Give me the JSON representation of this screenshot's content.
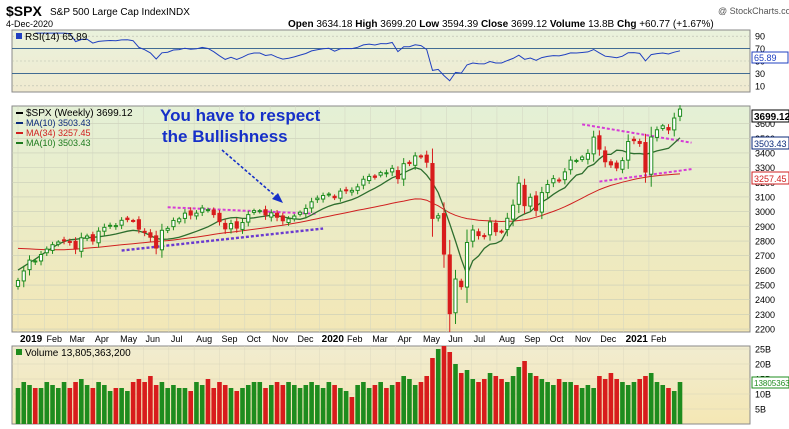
{
  "header": {
    "symbol": "$SPX",
    "name": "S&P 500 Large Cap Index",
    "exchange": "INDX",
    "date": "4-Dec-2020",
    "watermark": "@ StockCharts.com",
    "open_label": "Open",
    "open": "3634.18",
    "high_label": "High",
    "high": "3699.20",
    "low_label": "Low",
    "low": "3594.39",
    "close_label": "Close",
    "close": "3699.12",
    "volume_label": "Volume",
    "volume": "13.8B",
    "chg_label": "Chg",
    "chg": "+60.77 (+1.67%)"
  },
  "rsi": {
    "label": "RSI(14) 65.89",
    "value_badge": "65.89",
    "levels": [
      90,
      70,
      50,
      30,
      10
    ],
    "line_color": "#2040c0"
  },
  "price_legend": [
    {
      "text": "$SPX (Weekly) 3699.12",
      "color": "#000000"
    },
    {
      "text": "MA(10) 3503.43",
      "color": "#0b2a7a"
    },
    {
      "text": "MA(34) 3257.45",
      "color": "#d02020"
    },
    {
      "text": "MA(10) 3503.43",
      "color": "#1d7a1d"
    }
  ],
  "annotation": {
    "line1": "You have to respect",
    "line2": "the Bullishness",
    "color": "#1630c8"
  },
  "badges": {
    "last": "3699.12",
    "ma10": "3503.43",
    "ma34": "3257.45",
    "volume": "13805363200"
  },
  "volume_legend": "Volume 13,805,363,200",
  "colors": {
    "up": "#1e8c1e",
    "down": "#d81c1c",
    "ma10": "#2e6e2e",
    "ma34": "#d02020",
    "trend_magenta": "#d63cd6",
    "trend_purple": "#6a3ad0",
    "panel_bg_top": "#e6f1d6",
    "panel_bg_bottom": "#f2e6b8"
  },
  "chart_data": {
    "type": "candlestick",
    "title": "$SPX S&P 500 Large Cap Index INDX",
    "interval": "Weekly",
    "x_labels": [
      "2019",
      "Feb",
      "Mar",
      "Apr",
      "May",
      "Jun",
      "Jul",
      "Aug",
      "Sep",
      "Oct",
      "Nov",
      "Dec",
      "2020",
      "Feb",
      "Mar",
      "Apr",
      "May",
      "Jun",
      "Jul",
      "Aug",
      "Sep",
      "Oct",
      "Nov",
      "Dec",
      "2021",
      "Feb"
    ],
    "price_ticks": [
      2200,
      2300,
      2400,
      2500,
      2600,
      2700,
      2800,
      2900,
      3000,
      3100,
      3200,
      3300,
      3400,
      3500,
      3600
    ],
    "price_ylim": [
      2180,
      3720
    ],
    "volume_ticks": [
      "25B",
      "20B",
      "15B",
      "10B",
      "5B"
    ],
    "volume_ylim": [
      0,
      26
    ],
    "close": [
      2531,
      2596,
      2670,
      2664,
      2708,
      2745,
      2775,
      2793,
      2803,
      2792,
      2745,
      2822,
      2834,
      2800,
      2867,
      2893,
      2907,
      2905,
      2941,
      2946,
      2939,
      2881,
      2859,
      2826,
      2752,
      2873,
      2886,
      2940,
      2951,
      2990,
      2977,
      2990,
      3025,
      3014,
      2980,
      2932,
      2883,
      2919,
      2888,
      2926,
      2980,
      3007,
      3007,
      2978,
      2992,
      2962,
      2938,
      2951,
      2970,
      2996,
      3022,
      3067,
      3092,
      3110,
      3120,
      3095,
      3140,
      3146,
      3145,
      3169,
      3221,
      3240,
      3234,
      3266,
      3265,
      3295,
      3225,
      3327,
      3328,
      3380,
      3373,
      3337,
      2954,
      2972,
      2711,
      2305,
      2541,
      2489,
      2790,
      2875,
      2837,
      2830,
      2930,
      2864,
      2863,
      2955,
      3044,
      3194,
      3041,
      3098,
      3009,
      3130,
      3185,
      3225,
      3215,
      3271,
      3351,
      3349,
      3372,
      3397,
      3508,
      3426,
      3340,
      3319,
      3298,
      3348,
      3478,
      3484,
      3465,
      3270,
      3509,
      3558,
      3585,
      3557,
      3638,
      3699
    ],
    "volume_b": [
      12,
      14,
      13,
      12,
      12,
      14,
      13,
      12,
      14,
      12,
      14,
      15,
      13,
      12,
      14,
      13,
      11,
      12,
      12,
      11,
      14,
      15,
      14,
      16,
      13,
      14,
      12,
      13,
      12,
      12,
      11,
      14,
      13,
      15,
      12,
      14,
      13,
      12,
      11,
      12,
      13,
      14,
      14,
      12,
      13,
      14,
      13,
      14,
      13,
      12,
      13,
      14,
      13,
      12,
      14,
      13,
      12,
      11,
      9,
      13,
      14,
      12,
      13,
      14,
      12,
      13,
      14,
      16,
      15,
      13,
      14,
      16,
      22,
      25,
      26,
      24,
      20,
      17,
      18,
      15,
      14,
      15,
      17,
      16,
      15,
      14,
      16,
      19,
      21,
      17,
      16,
      15,
      14,
      13,
      15,
      14,
      14,
      13,
      12,
      13,
      12,
      16,
      15,
      17,
      15,
      14,
      13,
      14,
      15,
      16,
      17,
      14,
      13,
      12,
      11,
      14
    ],
    "ma10": [
      2602,
      2627,
      2652,
      2676,
      2703,
      2730,
      2755,
      2778,
      2796,
      2808,
      2812,
      2817,
      2822,
      2825,
      2829,
      2834,
      2840,
      2848,
      2857,
      2867,
      2873,
      2868,
      2855,
      2838,
      2817,
      2812,
      2813,
      2818,
      2826,
      2838,
      2852,
      2866,
      2881,
      2897,
      2917,
      2939,
      2950,
      2958,
      2960,
      2954,
      2954,
      2958,
      2964,
      2970,
      2976,
      2972,
      2965,
      2957,
      2951,
      2948,
      2958,
      2978,
      3000,
      3020,
      3037,
      3050,
      3058,
      3070,
      3082,
      3098,
      3119,
      3140,
      3160,
      3182,
      3207,
      3231,
      3245,
      3264,
      3283,
      3300,
      3288,
      3249,
      3197,
      3130,
      3027,
      2918,
      2800,
      2676,
      2570,
      2665,
      2698,
      2750,
      2778,
      2784,
      2803,
      2875,
      2932,
      2964,
      2985,
      3000,
      3037,
      3065,
      3088,
      3118,
      3143,
      3163,
      3209,
      3249,
      3260,
      3306,
      3322,
      3360,
      3390,
      3390,
      3419,
      3416,
      3401,
      3395,
      3396,
      3390,
      3402,
      3414,
      3423,
      3432,
      3467,
      3503
    ],
    "ma34": [
      2750,
      2748,
      2746,
      2744,
      2742,
      2741,
      2740,
      2740,
      2741,
      2743,
      2745,
      2748,
      2752,
      2755,
      2758,
      2762,
      2766,
      2770,
      2774,
      2778,
      2782,
      2786,
      2789,
      2793,
      2796,
      2800,
      2803,
      2807,
      2812,
      2817,
      2822,
      2827,
      2832,
      2838,
      2845,
      2851,
      2856,
      2860,
      2865,
      2870,
      2875,
      2880,
      2885,
      2890,
      2896,
      2902,
      2908,
      2914,
      2921,
      2928,
      2936,
      2944,
      2952,
      2961,
      2969,
      2977,
      2985,
      2993,
      3001,
      3009,
      3016,
      3024,
      3032,
      3040,
      3048,
      3057,
      3065,
      3072,
      3080,
      3087,
      3086,
      3078,
      3058,
      3040,
      3015,
      2992,
      2975,
      2962,
      2953,
      2947,
      2942,
      2939,
      2937,
      2935,
      2933,
      2934,
      2936,
      2940,
      2945,
      2952,
      2962,
      2974,
      2988,
      3002,
      3017,
      3034,
      3052,
      3072,
      3092,
      3113,
      3132,
      3150,
      3165,
      3179,
      3190,
      3201,
      3210,
      3220,
      3228,
      3234,
      3240,
      3245,
      3249,
      3252,
      3255,
      3257
    ]
  }
}
